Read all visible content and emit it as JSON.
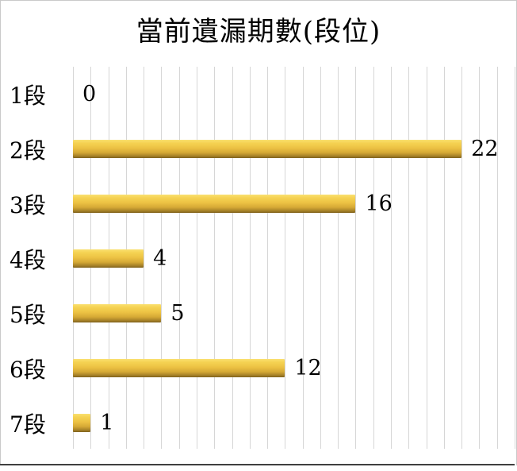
{
  "title": "當前遺漏期數(段位)",
  "chart_data": {
    "type": "bar",
    "orientation": "horizontal",
    "title": "當前遺漏期數(段位)",
    "categories": [
      "1段",
      "2段",
      "3段",
      "4段",
      "5段",
      "6段",
      "7段"
    ],
    "values": [
      0,
      22,
      16,
      4,
      5,
      12,
      1
    ],
    "data_labels": [
      "0",
      "22",
      "16",
      "4",
      "5",
      "12",
      "1"
    ],
    "xlabel": "",
    "ylabel": "",
    "xlim": [
      0,
      25
    ],
    "grid": true,
    "grid_interval": 1,
    "legend": false
  },
  "colors": {
    "bar_gradient": [
      "#FAE070",
      "#F5D252",
      "#ECC243",
      "#D5A935",
      "#A37F27",
      "#7E611C"
    ],
    "gridline": "#d6d6d6",
    "text": "#000000",
    "bottom_rule": "#3f3f3f",
    "frame_border": "#c9c9c9",
    "background": "#ffffff"
  }
}
